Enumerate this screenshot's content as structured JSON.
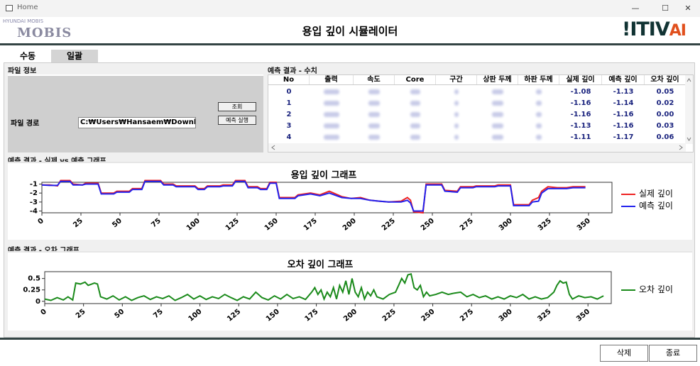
{
  "window": {
    "title": "Home",
    "controls": [
      "—",
      "☐",
      "✕"
    ]
  },
  "header": {
    "title": "용입 깊이 시뮬레이터",
    "left_logo_text": "MOBIS",
    "left_logo_small": "HYUNDAI MOBIS",
    "right_logo_text": "ITIV",
    "right_logo_suffix": "AI"
  },
  "tabs": [
    {
      "label": "수동"
    },
    {
      "label": "일괄"
    }
  ],
  "file_panel": {
    "title": "파일 정보",
    "path_label": "파일 경로",
    "path_value": "C:₩Users₩Hansaem₩Downloads₩",
    "lookup_button": "조회",
    "run_button": "예측 실행"
  },
  "table_panel": {
    "title": "예측 결과 - 수치",
    "columns": [
      "No",
      "출력",
      "속도",
      "Core",
      "구간",
      "상판 두께",
      "하판 두께",
      "실제 깊이",
      "예측 깊이",
      "오차 깊이"
    ],
    "rows": [
      {
        "no": "0",
        "actual": "-1.08",
        "pred": "-1.13",
        "err": "0.05"
      },
      {
        "no": "1",
        "actual": "-1.16",
        "pred": "-1.14",
        "err": "0.02"
      },
      {
        "no": "2",
        "actual": "-1.16",
        "pred": "-1.16",
        "err": "0.00"
      },
      {
        "no": "3",
        "actual": "-1.13",
        "pred": "-1.16",
        "err": "0.03"
      },
      {
        "no": "4",
        "actual": "-1.11",
        "pred": "-1.17",
        "err": "0.06"
      }
    ]
  },
  "depth_chart_panel": {
    "group_title": "예측 결과 - 실제 vs 예측 그래프"
  },
  "error_chart_panel": {
    "group_title": "예측 결과 - 오차 그래프"
  },
  "footer": {
    "delete_button": "삭제",
    "exit_button": "종료"
  },
  "chart_data": [
    {
      "type": "line",
      "title": "용입 깊이 그래프",
      "xlim": [
        0,
        365
      ],
      "ylim": [
        -4.2,
        -0.8
      ],
      "xticks": [
        0,
        25,
        50,
        75,
        100,
        125,
        150,
        175,
        200,
        225,
        250,
        275,
        300,
        325,
        350
      ],
      "yticks": [
        -1,
        -2,
        -3,
        -4
      ],
      "legend_position": "right",
      "series": [
        {
          "name": "실제 깊이",
          "color": "#ee2222",
          "points": [
            [
              0,
              -1.1
            ],
            [
              5,
              -1.1
            ],
            [
              10,
              -1.2
            ],
            [
              12,
              -0.6
            ],
            [
              18,
              -0.6
            ],
            [
              20,
              -1.0
            ],
            [
              26,
              -1.1
            ],
            [
              28,
              -0.9
            ],
            [
              36,
              -0.9
            ],
            [
              38,
              -2.0
            ],
            [
              46,
              -2.0
            ],
            [
              48,
              -1.8
            ],
            [
              56,
              -1.8
            ],
            [
              58,
              -1.5
            ],
            [
              64,
              -1.5
            ],
            [
              66,
              -0.6
            ],
            [
              76,
              -0.6
            ],
            [
              78,
              -1.0
            ],
            [
              84,
              -1.0
            ],
            [
              86,
              -1.2
            ],
            [
              98,
              -1.2
            ],
            [
              100,
              -1.5
            ],
            [
              104,
              -1.5
            ],
            [
              106,
              -1.2
            ],
            [
              114,
              -1.2
            ],
            [
              116,
              -1.1
            ],
            [
              122,
              -1.1
            ],
            [
              124,
              -0.6
            ],
            [
              130,
              -0.6
            ],
            [
              132,
              -1.3
            ],
            [
              138,
              -1.3
            ],
            [
              140,
              -1.5
            ],
            [
              144,
              -1.5
            ],
            [
              146,
              -0.8
            ],
            [
              150,
              -0.8
            ],
            [
              152,
              -2.5
            ],
            [
              162,
              -2.5
            ],
            [
              164,
              -2.2
            ],
            [
              172,
              -2.0
            ],
            [
              178,
              -2.2
            ],
            [
              184,
              -1.8
            ],
            [
              192,
              -2.4
            ],
            [
              198,
              -2.6
            ],
            [
              204,
              -2.5
            ],
            [
              210,
              -2.8
            ],
            [
              216,
              -2.9
            ],
            [
              222,
              -3.0
            ],
            [
              230,
              -2.9
            ],
            [
              234,
              -2.5
            ],
            [
              236,
              -2.8
            ],
            [
              238,
              -4.1
            ],
            [
              244,
              -4.2
            ],
            [
              246,
              -1.0
            ],
            [
              256,
              -1.0
            ],
            [
              258,
              -1.7
            ],
            [
              266,
              -1.8
            ],
            [
              268,
              -1.3
            ],
            [
              276,
              -1.3
            ],
            [
              278,
              -1.2
            ],
            [
              290,
              -1.2
            ],
            [
              292,
              -1.1
            ],
            [
              300,
              -1.1
            ],
            [
              302,
              -3.3
            ],
            [
              312,
              -3.3
            ],
            [
              314,
              -2.8
            ],
            [
              318,
              -2.5
            ],
            [
              320,
              -1.8
            ],
            [
              324,
              -1.3
            ],
            [
              330,
              -1.4
            ],
            [
              336,
              -1.4
            ],
            [
              340,
              -1.3
            ],
            [
              348,
              -1.3
            ]
          ]
        },
        {
          "name": "예측 깊이",
          "color": "#2222ee",
          "points": [
            [
              0,
              -1.1
            ],
            [
              5,
              -1.15
            ],
            [
              10,
              -1.15
            ],
            [
              12,
              -0.7
            ],
            [
              18,
              -0.7
            ],
            [
              20,
              -1.1
            ],
            [
              26,
              -1.1
            ],
            [
              28,
              -1.0
            ],
            [
              36,
              -1.0
            ],
            [
              38,
              -2.1
            ],
            [
              46,
              -2.1
            ],
            [
              48,
              -1.9
            ],
            [
              56,
              -1.9
            ],
            [
              58,
              -1.6
            ],
            [
              64,
              -1.6
            ],
            [
              66,
              -0.7
            ],
            [
              76,
              -0.7
            ],
            [
              78,
              -1.1
            ],
            [
              84,
              -1.1
            ],
            [
              86,
              -1.3
            ],
            [
              98,
              -1.3
            ],
            [
              100,
              -1.6
            ],
            [
              104,
              -1.6
            ],
            [
              106,
              -1.3
            ],
            [
              114,
              -1.3
            ],
            [
              116,
              -1.2
            ],
            [
              122,
              -1.2
            ],
            [
              124,
              -0.7
            ],
            [
              130,
              -0.7
            ],
            [
              132,
              -1.4
            ],
            [
              138,
              -1.4
            ],
            [
              140,
              -1.6
            ],
            [
              144,
              -1.6
            ],
            [
              146,
              -0.9
            ],
            [
              150,
              -0.9
            ],
            [
              152,
              -2.6
            ],
            [
              162,
              -2.6
            ],
            [
              164,
              -2.3
            ],
            [
              172,
              -2.1
            ],
            [
              178,
              -2.3
            ],
            [
              184,
              -2.0
            ],
            [
              192,
              -2.5
            ],
            [
              198,
              -2.6
            ],
            [
              204,
              -2.6
            ],
            [
              210,
              -2.8
            ],
            [
              216,
              -2.9
            ],
            [
              222,
              -3.0
            ],
            [
              230,
              -3.0
            ],
            [
              234,
              -2.8
            ],
            [
              236,
              -3.1
            ],
            [
              238,
              -4.0
            ],
            [
              244,
              -4.0
            ],
            [
              246,
              -1.1
            ],
            [
              256,
              -1.1
            ],
            [
              258,
              -1.8
            ],
            [
              266,
              -1.9
            ],
            [
              268,
              -1.4
            ],
            [
              276,
              -1.4
            ],
            [
              278,
              -1.3
            ],
            [
              290,
              -1.3
            ],
            [
              292,
              -1.2
            ],
            [
              300,
              -1.2
            ],
            [
              302,
              -3.4
            ],
            [
              312,
              -3.4
            ],
            [
              314,
              -3.0
            ],
            [
              318,
              -2.9
            ],
            [
              320,
              -2.0
            ],
            [
              324,
              -1.5
            ],
            [
              330,
              -1.5
            ],
            [
              336,
              -1.5
            ],
            [
              340,
              -1.4
            ],
            [
              348,
              -1.4
            ]
          ]
        }
      ]
    },
    {
      "type": "line",
      "title": "오차 깊이 그래프",
      "xlim": [
        0,
        365
      ],
      "ylim": [
        -0.05,
        0.65
      ],
      "xticks": [
        0,
        25,
        50,
        75,
        100,
        125,
        150,
        175,
        200,
        225,
        250,
        275,
        300,
        325,
        350
      ],
      "yticks": [
        0,
        0.25,
        0.5
      ],
      "legend_position": "right",
      "series": [
        {
          "name": "오차 깊이",
          "color": "#1a8a1a",
          "points": [
            [
              0,
              0.05
            ],
            [
              4,
              0.02
            ],
            [
              8,
              0.08
            ],
            [
              12,
              0.03
            ],
            [
              15,
              0.1
            ],
            [
              18,
              0.03
            ],
            [
              20,
              0.4
            ],
            [
              23,
              0.38
            ],
            [
              26,
              0.42
            ],
            [
              28,
              0.35
            ],
            [
              32,
              0.4
            ],
            [
              34,
              0.38
            ],
            [
              36,
              0.1
            ],
            [
              40,
              0.05
            ],
            [
              44,
              0.12
            ],
            [
              48,
              0.03
            ],
            [
              52,
              0.1
            ],
            [
              56,
              0.02
            ],
            [
              60,
              0.08
            ],
            [
              64,
              0.12
            ],
            [
              68,
              0.04
            ],
            [
              72,
              0.1
            ],
            [
              76,
              0.06
            ],
            [
              80,
              0.12
            ],
            [
              84,
              0.02
            ],
            [
              88,
              0.08
            ],
            [
              92,
              0.15
            ],
            [
              96,
              0.05
            ],
            [
              100,
              0.12
            ],
            [
              104,
              0.04
            ],
            [
              108,
              0.1
            ],
            [
              112,
              0.06
            ],
            [
              116,
              0.15
            ],
            [
              120,
              0.08
            ],
            [
              124,
              0.02
            ],
            [
              128,
              0.1
            ],
            [
              132,
              0.05
            ],
            [
              136,
              0.2
            ],
            [
              140,
              0.08
            ],
            [
              144,
              0.03
            ],
            [
              148,
              0.12
            ],
            [
              152,
              0.05
            ],
            [
              156,
              0.15
            ],
            [
              160,
              0.06
            ],
            [
              164,
              0.1
            ],
            [
              168,
              0.04
            ],
            [
              172,
              0.2
            ],
            [
              174,
              0.3
            ],
            [
              176,
              0.15
            ],
            [
              178,
              0.25
            ],
            [
              180,
              0.05
            ],
            [
              182,
              0.2
            ],
            [
              184,
              0.1
            ],
            [
              186,
              0.3
            ],
            [
              188,
              0.05
            ],
            [
              190,
              0.35
            ],
            [
              192,
              0.2
            ],
            [
              194,
              0.45
            ],
            [
              196,
              0.15
            ],
            [
              198,
              0.5
            ],
            [
              200,
              0.2
            ],
            [
              202,
              0.1
            ],
            [
              204,
              0.3
            ],
            [
              206,
              0.05
            ],
            [
              208,
              0.2
            ],
            [
              210,
              0.12
            ],
            [
              212,
              0.25
            ],
            [
              214,
              0.1
            ],
            [
              218,
              0.05
            ],
            [
              222,
              0.15
            ],
            [
              226,
              0.2
            ],
            [
              228,
              0.35
            ],
            [
              230,
              0.5
            ],
            [
              232,
              0.4
            ],
            [
              234,
              0.58
            ],
            [
              236,
              0.6
            ],
            [
              238,
              0.3
            ],
            [
              240,
              0.25
            ],
            [
              242,
              0.35
            ],
            [
              244,
              0.1
            ],
            [
              246,
              0.2
            ],
            [
              248,
              0.12
            ],
            [
              252,
              0.15
            ],
            [
              256,
              0.2
            ],
            [
              260,
              0.15
            ],
            [
              264,
              0.18
            ],
            [
              268,
              0.2
            ],
            [
              272,
              0.1
            ],
            [
              276,
              0.15
            ],
            [
              280,
              0.08
            ],
            [
              284,
              0.12
            ],
            [
              288,
              0.05
            ],
            [
              292,
              0.1
            ],
            [
              296,
              0.05
            ],
            [
              300,
              0.12
            ],
            [
              304,
              0.08
            ],
            [
              308,
              0.15
            ],
            [
              312,
              0.05
            ],
            [
              316,
              0.1
            ],
            [
              320,
              0.05
            ],
            [
              324,
              0.08
            ],
            [
              328,
              0.2
            ],
            [
              330,
              0.35
            ],
            [
              332,
              0.45
            ],
            [
              334,
              0.4
            ],
            [
              336,
              0.42
            ],
            [
              338,
              0.15
            ],
            [
              340,
              0.05
            ],
            [
              344,
              0.12
            ],
            [
              348,
              0.08
            ],
            [
              352,
              0.1
            ],
            [
              356,
              0.05
            ],
            [
              360,
              0.12
            ]
          ]
        }
      ]
    }
  ]
}
